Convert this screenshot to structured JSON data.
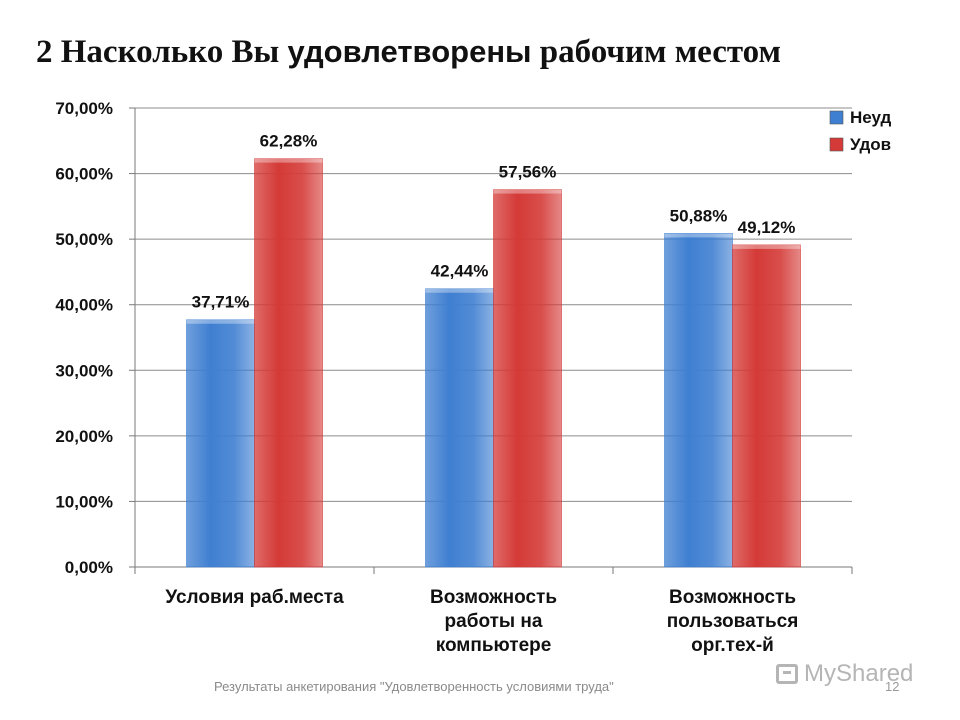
{
  "slide": {
    "title_part1": "2 Насколько Вы ",
    "title_part2": "удовлетворены",
    "title_part3": " рабочим местом",
    "footer": "Результаты анкетирования \"Удовлетворенность условиями труда\"",
    "page_number": "12",
    "watermark": "MyShared"
  },
  "chart_data": {
    "type": "bar",
    "categories": [
      [
        "Условия раб.места"
      ],
      [
        "Возможность",
        "работы на",
        "компьютере"
      ],
      [
        "Возможность",
        "пользоваться",
        "орг.тех-й"
      ]
    ],
    "series": [
      {
        "name": "Неуд",
        "values": [
          37.71,
          42.44,
          50.88
        ],
        "labels": [
          "37,71%",
          "42,44%",
          "50,88%"
        ],
        "color": "#3f7fd1"
      },
      {
        "name": "Удов",
        "values": [
          62.28,
          57.56,
          49.12
        ],
        "labels": [
          "62,28%",
          "57,56%",
          "49,12%"
        ],
        "color": "#d43a37"
      }
    ],
    "ylim": [
      0,
      70
    ],
    "yticks": [
      "0,00%",
      "10,00%",
      "20,00%",
      "30,00%",
      "40,00%",
      "50,00%",
      "60,00%",
      "70,00%"
    ],
    "grid": true,
    "legend": "top-right"
  }
}
